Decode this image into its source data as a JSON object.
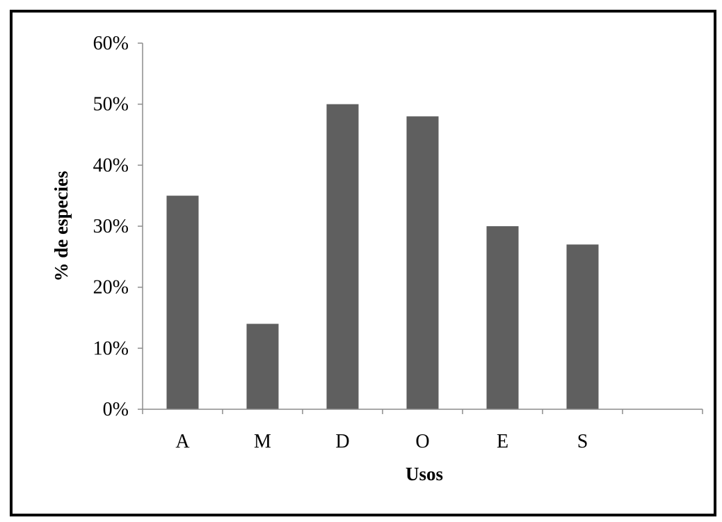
{
  "chart_data": {
    "type": "bar",
    "categories": [
      "A",
      "M",
      "D",
      "O",
      "E",
      "S"
    ],
    "values": [
      0.35,
      0.14,
      0.5,
      0.48,
      0.3,
      0.27
    ],
    "xlabel": "Usos",
    "ylabel": "% de especies",
    "ylim": [
      0,
      0.6
    ],
    "yticks": [
      "0%",
      "10%",
      "20%",
      "30%",
      "40%",
      "50%",
      "60%"
    ],
    "grid": false,
    "legend": "none",
    "colors": {
      "bar": "#5f5f5f",
      "axis": "#8c8c8c",
      "frame": "#000000"
    }
  }
}
